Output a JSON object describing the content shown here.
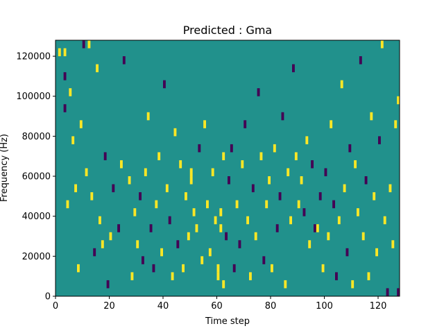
{
  "chart_data": {
    "type": "heatmap",
    "title": "Predicted : Gma",
    "xlabel": "Time step",
    "ylabel": "Frequency (Hz)",
    "xlim": [
      0,
      128
    ],
    "ylim": [
      0,
      128000
    ],
    "x_ticks": [
      0,
      20,
      40,
      60,
      80,
      100,
      120
    ],
    "x_tick_labels": [
      "0",
      "20",
      "40",
      "60",
      "80",
      "100",
      "120"
    ],
    "y_ticks": [
      0,
      20000,
      40000,
      60000,
      80000,
      100000,
      120000
    ],
    "y_tick_labels": [
      "0",
      "20000",
      "40000",
      "60000",
      "80000",
      "100000",
      "120000"
    ],
    "colormap": "viridis",
    "background_value": 0,
    "colors": {
      "low": "#440154",
      "mid": "#21918c",
      "high": "#fde725"
    },
    "grid": false,
    "cell_width_steps": 1,
    "cell_height_hz": 4000,
    "cells": [
      {
        "x": 1,
        "y": 120000,
        "v": 1
      },
      {
        "x": 3,
        "y": 92000,
        "v": -1
      },
      {
        "x": 3,
        "y": 108000,
        "v": -1
      },
      {
        "x": 3,
        "y": 120000,
        "v": 1
      },
      {
        "x": 4,
        "y": 44000,
        "v": 1
      },
      {
        "x": 5,
        "y": 100000,
        "v": 1
      },
      {
        "x": 6,
        "y": 76000,
        "v": 1
      },
      {
        "x": 7,
        "y": 52000,
        "v": 1
      },
      {
        "x": 8,
        "y": 12000,
        "v": 1
      },
      {
        "x": 9,
        "y": 84000,
        "v": 1
      },
      {
        "x": 10,
        "y": 124000,
        "v": -1
      },
      {
        "x": 11,
        "y": 60000,
        "v": 1
      },
      {
        "x": 12,
        "y": 124000,
        "v": 1
      },
      {
        "x": 13,
        "y": 48000,
        "v": 1
      },
      {
        "x": 14,
        "y": 20000,
        "v": -1
      },
      {
        "x": 15,
        "y": 112000,
        "v": 1
      },
      {
        "x": 16,
        "y": 36000,
        "v": 1
      },
      {
        "x": 17,
        "y": 24000,
        "v": 1
      },
      {
        "x": 18,
        "y": 68000,
        "v": -1
      },
      {
        "x": 19,
        "y": 4000,
        "v": -1
      },
      {
        "x": 20,
        "y": 28000,
        "v": 1
      },
      {
        "x": 21,
        "y": 52000,
        "v": -1
      },
      {
        "x": 23,
        "y": 32000,
        "v": -1
      },
      {
        "x": 24,
        "y": 64000,
        "v": 1
      },
      {
        "x": 25,
        "y": 116000,
        "v": -1
      },
      {
        "x": 27,
        "y": 56000,
        "v": 1
      },
      {
        "x": 28,
        "y": 8000,
        "v": 1
      },
      {
        "x": 29,
        "y": 40000,
        "v": 1
      },
      {
        "x": 30,
        "y": 24000,
        "v": 1
      },
      {
        "x": 31,
        "y": 48000,
        "v": -1
      },
      {
        "x": 32,
        "y": 16000,
        "v": -1
      },
      {
        "x": 33,
        "y": 60000,
        "v": 1
      },
      {
        "x": 34,
        "y": 88000,
        "v": 1
      },
      {
        "x": 35,
        "y": 32000,
        "v": -1
      },
      {
        "x": 36,
        "y": 12000,
        "v": -1
      },
      {
        "x": 37,
        "y": 44000,
        "v": 1
      },
      {
        "x": 38,
        "y": 68000,
        "v": 1
      },
      {
        "x": 39,
        "y": 20000,
        "v": 1
      },
      {
        "x": 40,
        "y": 104000,
        "v": -1
      },
      {
        "x": 41,
        "y": 52000,
        "v": 1
      },
      {
        "x": 42,
        "y": 36000,
        "v": -1
      },
      {
        "x": 43,
        "y": 8000,
        "v": 1
      },
      {
        "x": 44,
        "y": 80000,
        "v": 1
      },
      {
        "x": 45,
        "y": 24000,
        "v": -1
      },
      {
        "x": 46,
        "y": 64000,
        "v": 1
      },
      {
        "x": 47,
        "y": 12000,
        "v": 1
      },
      {
        "x": 48,
        "y": 48000,
        "v": 1
      },
      {
        "x": 49,
        "y": 28000,
        "v": 1
      },
      {
        "x": 50,
        "y": 56000,
        "v": 1
      },
      {
        "x": 50,
        "y": 60000,
        "v": 1
      },
      {
        "x": 51,
        "y": 40000,
        "v": 1
      },
      {
        "x": 52,
        "y": 32000,
        "v": 1
      },
      {
        "x": 53,
        "y": 72000,
        "v": -1
      },
      {
        "x": 54,
        "y": 16000,
        "v": 1
      },
      {
        "x": 55,
        "y": 84000,
        "v": 1
      },
      {
        "x": 56,
        "y": 44000,
        "v": 1
      },
      {
        "x": 57,
        "y": 20000,
        "v": 1
      },
      {
        "x": 58,
        "y": 60000,
        "v": 1
      },
      {
        "x": 59,
        "y": 36000,
        "v": 1
      },
      {
        "x": 60,
        "y": 8000,
        "v": 1
      },
      {
        "x": 60,
        "y": 12000,
        "v": 1
      },
      {
        "x": 61,
        "y": 32000,
        "v": 1
      },
      {
        "x": 61,
        "y": 40000,
        "v": 1
      },
      {
        "x": 62,
        "y": 4000,
        "v": 1
      },
      {
        "x": 62,
        "y": 68000,
        "v": 1
      },
      {
        "x": 63,
        "y": 28000,
        "v": -1
      },
      {
        "x": 64,
        "y": 56000,
        "v": -1
      },
      {
        "x": 65,
        "y": 72000,
        "v": -1
      },
      {
        "x": 66,
        "y": 12000,
        "v": -1
      },
      {
        "x": 67,
        "y": 44000,
        "v": 1
      },
      {
        "x": 68,
        "y": 24000,
        "v": -1
      },
      {
        "x": 69,
        "y": 64000,
        "v": 1
      },
      {
        "x": 70,
        "y": 84000,
        "v": -1
      },
      {
        "x": 71,
        "y": 36000,
        "v": 1
      },
      {
        "x": 72,
        "y": 8000,
        "v": 1
      },
      {
        "x": 73,
        "y": 52000,
        "v": -1
      },
      {
        "x": 74,
        "y": 28000,
        "v": 1
      },
      {
        "x": 75,
        "y": 100000,
        "v": -1
      },
      {
        "x": 76,
        "y": 68000,
        "v": 1
      },
      {
        "x": 77,
        "y": 16000,
        "v": -1
      },
      {
        "x": 78,
        "y": 44000,
        "v": 1
      },
      {
        "x": 79,
        "y": 56000,
        "v": 1
      },
      {
        "x": 80,
        "y": 12000,
        "v": 1
      },
      {
        "x": 81,
        "y": 72000,
        "v": 1
      },
      {
        "x": 82,
        "y": 32000,
        "v": -1
      },
      {
        "x": 83,
        "y": 48000,
        "v": -1
      },
      {
        "x": 84,
        "y": 88000,
        "v": -1
      },
      {
        "x": 85,
        "y": 4000,
        "v": 1
      },
      {
        "x": 86,
        "y": 60000,
        "v": 1
      },
      {
        "x": 87,
        "y": 36000,
        "v": 1
      },
      {
        "x": 88,
        "y": 112000,
        "v": -1
      },
      {
        "x": 89,
        "y": 68000,
        "v": 1
      },
      {
        "x": 90,
        "y": 44000,
        "v": 1
      },
      {
        "x": 91,
        "y": 56000,
        "v": 1
      },
      {
        "x": 92,
        "y": 40000,
        "v": -1
      },
      {
        "x": 93,
        "y": 76000,
        "v": 1
      },
      {
        "x": 94,
        "y": 24000,
        "v": 1
      },
      {
        "x": 95,
        "y": 64000,
        "v": -1
      },
      {
        "x": 96,
        "y": 32000,
        "v": -1
      },
      {
        "x": 97,
        "y": 32000,
        "v": 1
      },
      {
        "x": 98,
        "y": 48000,
        "v": -1
      },
      {
        "x": 99,
        "y": 12000,
        "v": 1
      },
      {
        "x": 100,
        "y": 60000,
        "v": -1
      },
      {
        "x": 101,
        "y": 28000,
        "v": 1
      },
      {
        "x": 102,
        "y": 84000,
        "v": 1
      },
      {
        "x": 103,
        "y": 44000,
        "v": -1
      },
      {
        "x": 104,
        "y": 8000,
        "v": -1
      },
      {
        "x": 105,
        "y": 36000,
        "v": 1
      },
      {
        "x": 106,
        "y": 104000,
        "v": 1
      },
      {
        "x": 107,
        "y": 52000,
        "v": 1
      },
      {
        "x": 108,
        "y": 20000,
        "v": -1
      },
      {
        "x": 109,
        "y": 72000,
        "v": -1
      },
      {
        "x": 110,
        "y": 4000,
        "v": 1
      },
      {
        "x": 111,
        "y": 64000,
        "v": 1
      },
      {
        "x": 112,
        "y": 40000,
        "v": 1
      },
      {
        "x": 113,
        "y": 116000,
        "v": -1
      },
      {
        "x": 114,
        "y": 28000,
        "v": 1
      },
      {
        "x": 115,
        "y": 56000,
        "v": -1
      },
      {
        "x": 116,
        "y": 8000,
        "v": 1
      },
      {
        "x": 117,
        "y": 88000,
        "v": 1
      },
      {
        "x": 118,
        "y": 48000,
        "v": 1
      },
      {
        "x": 119,
        "y": 20000,
        "v": 1
      },
      {
        "x": 120,
        "y": 76000,
        "v": -1
      },
      {
        "x": 121,
        "y": 124000,
        "v": 1
      },
      {
        "x": 122,
        "y": 36000,
        "v": 1
      },
      {
        "x": 123,
        "y": 0,
        "v": -1
      },
      {
        "x": 124,
        "y": 52000,
        "v": 1
      },
      {
        "x": 125,
        "y": 24000,
        "v": 1
      },
      {
        "x": 126,
        "y": 84000,
        "v": 1
      },
      {
        "x": 127,
        "y": 96000,
        "v": 1
      },
      {
        "x": 127,
        "y": 0,
        "v": -1
      }
    ]
  }
}
